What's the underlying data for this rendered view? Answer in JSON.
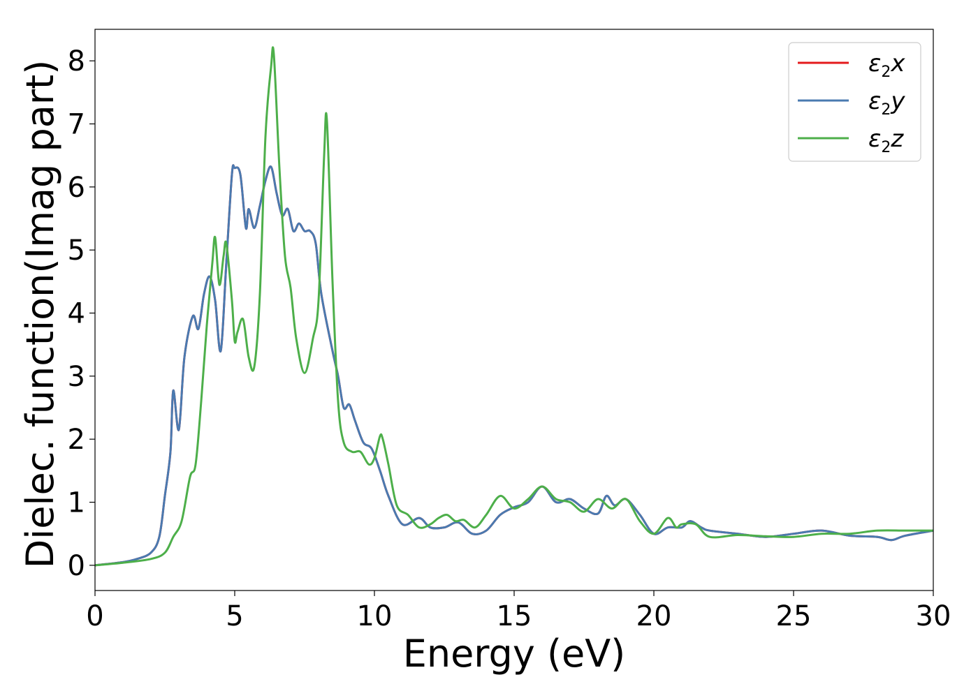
{
  "chart_data": {
    "type": "line",
    "xlabel": "Energy (eV)",
    "ylabel": "Dielec. function(Imag part)",
    "xlim": [
      0,
      30
    ],
    "ylim": [
      -0.4,
      8.5
    ],
    "xticks": [
      0,
      5,
      10,
      15,
      20,
      25,
      30
    ],
    "yticks": [
      0,
      1,
      2,
      3,
      4,
      5,
      6,
      7,
      8
    ],
    "grid": false,
    "legend_position": "top-right",
    "series": [
      {
        "name": "ε2x",
        "legend_main": "ε",
        "legend_sub": "2",
        "legend_var": "x",
        "color": "#e41a1c",
        "x": [
          0,
          1,
          1.5,
          2,
          2.3,
          2.5,
          2.7,
          2.8,
          3.0,
          3.2,
          3.5,
          3.7,
          3.9,
          4.1,
          4.3,
          4.5,
          4.7,
          4.9,
          5.0,
          5.2,
          5.4,
          5.5,
          5.7,
          5.9,
          6.1,
          6.3,
          6.5,
          6.7,
          6.9,
          7.1,
          7.3,
          7.5,
          7.7,
          7.9,
          8.1,
          8.5,
          8.7,
          8.9,
          9.1,
          9.3,
          9.6,
          9.9,
          10.2,
          10.5,
          11.0,
          11.6,
          12.0,
          12.5,
          13.0,
          13.5,
          14.0,
          14.5,
          15.0,
          15.5,
          16.0,
          16.5,
          17.0,
          17.5,
          18.0,
          18.3,
          18.6,
          19.0,
          19.5,
          20.0,
          20.5,
          21.0,
          21.3,
          21.7,
          22.0,
          23.0,
          24.0,
          25.0,
          26.0,
          27.0,
          28.0,
          28.5,
          29.0,
          30.0
        ],
        "values": [
          0.0,
          0.05,
          0.1,
          0.2,
          0.45,
          1.1,
          1.8,
          2.77,
          2.15,
          3.3,
          3.95,
          3.75,
          4.3,
          4.58,
          4.2,
          3.4,
          4.8,
          6.2,
          6.3,
          6.2,
          5.35,
          5.65,
          5.35,
          5.7,
          6.1,
          6.32,
          5.9,
          5.55,
          5.65,
          5.3,
          5.42,
          5.3,
          5.3,
          5.1,
          4.3,
          3.4,
          3.0,
          2.5,
          2.55,
          2.3,
          1.95,
          1.85,
          1.5,
          1.1,
          0.65,
          0.75,
          0.6,
          0.6,
          0.68,
          0.5,
          0.55,
          0.8,
          0.92,
          1.0,
          1.25,
          1.0,
          1.05,
          0.9,
          0.82,
          1.1,
          0.95,
          1.05,
          0.8,
          0.5,
          0.6,
          0.6,
          0.7,
          0.6,
          0.55,
          0.5,
          0.45,
          0.5,
          0.55,
          0.47,
          0.45,
          0.4,
          0.47,
          0.55
        ]
      },
      {
        "name": "ε2y",
        "legend_main": "ε",
        "legend_sub": "2",
        "legend_var": "y",
        "color": "#4a7ab0",
        "x": [
          0,
          1,
          1.5,
          2,
          2.3,
          2.5,
          2.7,
          2.8,
          3.0,
          3.2,
          3.5,
          3.7,
          3.9,
          4.1,
          4.3,
          4.5,
          4.7,
          4.9,
          5.0,
          5.2,
          5.4,
          5.5,
          5.7,
          5.9,
          6.1,
          6.3,
          6.5,
          6.7,
          6.9,
          7.1,
          7.3,
          7.5,
          7.7,
          7.9,
          8.1,
          8.5,
          8.7,
          8.9,
          9.1,
          9.3,
          9.6,
          9.9,
          10.2,
          10.5,
          11.0,
          11.6,
          12.0,
          12.5,
          13.0,
          13.5,
          14.0,
          14.5,
          15.0,
          15.5,
          16.0,
          16.5,
          17.0,
          17.5,
          18.0,
          18.3,
          18.6,
          19.0,
          19.5,
          20.0,
          20.5,
          21.0,
          21.3,
          21.7,
          22.0,
          23.0,
          24.0,
          25.0,
          26.0,
          27.0,
          28.0,
          28.5,
          29.0,
          30.0
        ],
        "values": [
          0.0,
          0.05,
          0.1,
          0.2,
          0.45,
          1.1,
          1.8,
          2.77,
          2.15,
          3.3,
          3.95,
          3.75,
          4.3,
          4.58,
          4.2,
          3.4,
          4.8,
          6.2,
          6.3,
          6.2,
          5.35,
          5.65,
          5.35,
          5.7,
          6.1,
          6.32,
          5.9,
          5.55,
          5.65,
          5.3,
          5.42,
          5.3,
          5.3,
          5.1,
          4.3,
          3.4,
          3.0,
          2.5,
          2.55,
          2.3,
          1.95,
          1.85,
          1.5,
          1.1,
          0.65,
          0.75,
          0.6,
          0.6,
          0.68,
          0.5,
          0.55,
          0.8,
          0.92,
          1.0,
          1.25,
          1.0,
          1.05,
          0.9,
          0.82,
          1.1,
          0.95,
          1.05,
          0.8,
          0.5,
          0.6,
          0.6,
          0.7,
          0.6,
          0.55,
          0.5,
          0.45,
          0.5,
          0.55,
          0.47,
          0.45,
          0.4,
          0.47,
          0.55
        ]
      },
      {
        "name": "ε2z",
        "legend_main": "ε",
        "legend_sub": "2",
        "legend_var": "z",
        "color": "#4daf4a",
        "x": [
          0,
          1,
          2,
          2.5,
          2.8,
          3.1,
          3.4,
          3.6,
          3.8,
          4.0,
          4.2,
          4.3,
          4.45,
          4.6,
          4.7,
          4.9,
          5.0,
          5.1,
          5.3,
          5.5,
          5.7,
          5.9,
          6.1,
          6.3,
          6.4,
          6.6,
          6.8,
          7.0,
          7.2,
          7.5,
          7.8,
          8.0,
          8.2,
          8.3,
          8.5,
          8.7,
          8.9,
          9.2,
          9.5,
          9.8,
          10.0,
          10.2,
          10.3,
          10.5,
          10.8,
          11.2,
          11.6,
          12.0,
          12.3,
          12.6,
          12.9,
          13.2,
          13.6,
          14.0,
          14.5,
          15.0,
          15.5,
          16.0,
          16.5,
          17.0,
          17.5,
          18.0,
          18.5,
          19.0,
          19.5,
          20.0,
          20.5,
          20.8,
          21.0,
          21.5,
          22.0,
          23.0,
          24.0,
          25.0,
          26.0,
          27.0,
          28.0,
          29.0,
          30.0
        ],
        "values": [
          0.0,
          0.04,
          0.1,
          0.2,
          0.45,
          0.7,
          1.4,
          1.6,
          2.6,
          3.8,
          4.8,
          5.2,
          4.45,
          4.9,
          5.1,
          4.2,
          3.55,
          3.7,
          3.9,
          3.3,
          3.15,
          4.3,
          6.8,
          7.9,
          8.1,
          6.3,
          4.9,
          4.4,
          3.6,
          3.05,
          3.6,
          4.2,
          6.5,
          7.05,
          4.5,
          2.6,
          1.95,
          1.8,
          1.8,
          1.6,
          1.7,
          2.05,
          2.0,
          1.6,
          0.95,
          0.8,
          0.6,
          0.65,
          0.75,
          0.8,
          0.7,
          0.72,
          0.6,
          0.8,
          1.1,
          0.9,
          1.05,
          1.25,
          1.05,
          1.0,
          0.85,
          1.05,
          0.9,
          1.05,
          0.7,
          0.5,
          0.75,
          0.6,
          0.65,
          0.65,
          0.45,
          0.48,
          0.46,
          0.45,
          0.5,
          0.5,
          0.55,
          0.55,
          0.55
        ]
      }
    ]
  }
}
